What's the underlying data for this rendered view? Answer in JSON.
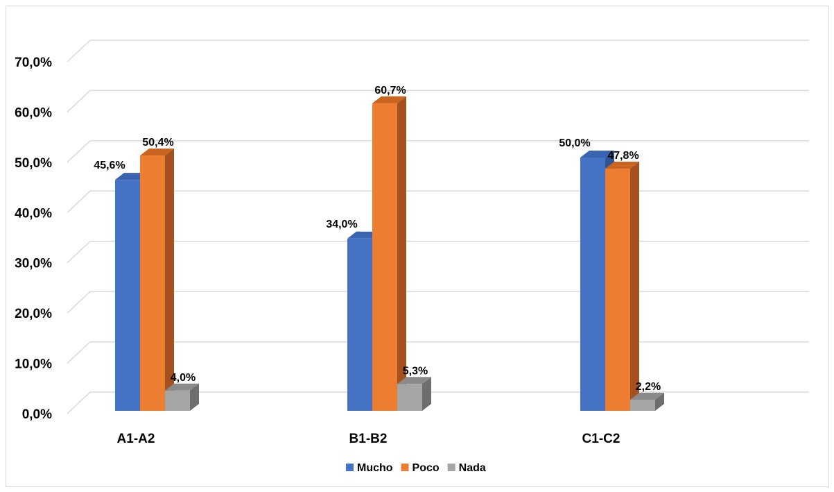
{
  "chart_data": {
    "type": "bar",
    "title": "",
    "xlabel": "",
    "ylabel": "",
    "categories": [
      "A1-A2",
      "B1-B2",
      "C1-C2"
    ],
    "series": [
      {
        "name": "Mucho",
        "values": [
          45.6,
          34.0,
          50.0
        ],
        "labels": [
          "45,6%",
          "34,0%",
          "50,0%"
        ],
        "color": "#4472C4",
        "side_color": "#2F5597",
        "top_color": "#3A63B0"
      },
      {
        "name": "Poco",
        "values": [
          50.4,
          60.7,
          47.8
        ],
        "labels": [
          "50,4%",
          "60,7%",
          "47,8%"
        ],
        "color": "#ED7D31",
        "side_color": "#A5501F",
        "top_color": "#C9651F"
      },
      {
        "name": "Nada",
        "values": [
          4.0,
          5.3,
          2.2
        ],
        "labels": [
          "4,0%",
          "5,3%",
          "2,2%"
        ],
        "color": "#A5A5A5",
        "side_color": "#6E6E6E",
        "top_color": "#8A8A8A"
      }
    ],
    "ylim": [
      0,
      70
    ],
    "yticks": [
      0,
      10,
      20,
      30,
      40,
      50,
      60,
      70
    ],
    "ytick_labels": [
      "0,0%",
      "10,0%",
      "20,0%",
      "30,0%",
      "40,0%",
      "50,0%",
      "60,0%",
      "70,0%"
    ],
    "grid": true,
    "legend_position": "bottom",
    "style": "3d-column"
  }
}
